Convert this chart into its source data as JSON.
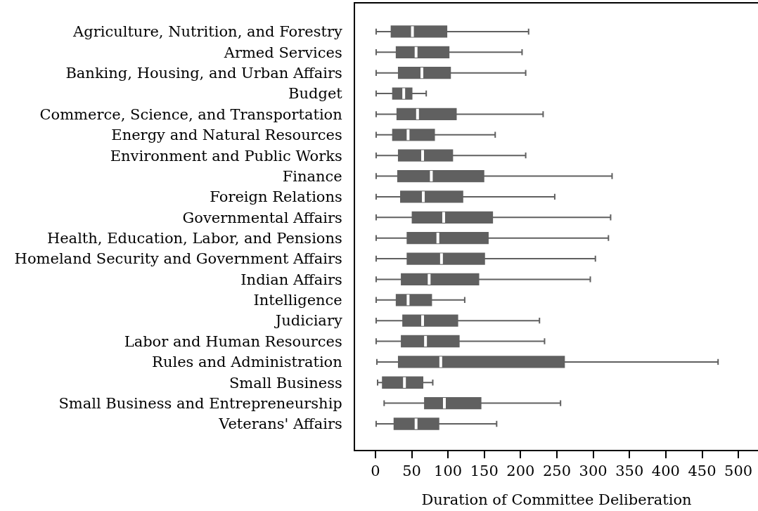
{
  "chart_data": {
    "type": "box",
    "orientation": "horizontal",
    "xlabel": "Duration of Committee Deliberation",
    "categories": [
      "Agriculture, Nutrition, and Forestry",
      "Armed Services",
      "Banking, Housing, and Urban Affairs",
      "Budget",
      "Commerce, Science, and Transportation",
      "Energy and Natural Resources",
      "Environment and Public Works",
      "Finance",
      "Foreign Relations",
      "Governmental Affairs",
      "Health, Education, Labor, and Pensions",
      "Homeland Security and Government Affairs",
      "Indian Affairs",
      "Intelligence",
      "Judiciary",
      "Labor and Human Resources",
      "Rules and Administration",
      "Small Business",
      "Small Business and Entrepreneurship",
      "Veterans' Affairs"
    ],
    "boxes": [
      {
        "low": 1,
        "q1": 22,
        "median": 51,
        "q3": 98,
        "high": 211
      },
      {
        "low": 1,
        "q1": 29,
        "median": 56,
        "q3": 101,
        "high": 202
      },
      {
        "low": 1,
        "q1": 32,
        "median": 64,
        "q3": 103,
        "high": 207
      },
      {
        "low": 1,
        "q1": 24,
        "median": 39,
        "q3": 50,
        "high": 70
      },
      {
        "low": 1,
        "q1": 30,
        "median": 58,
        "q3": 111,
        "high": 231
      },
      {
        "low": 1,
        "q1": 24,
        "median": 45,
        "q3": 81,
        "high": 165
      },
      {
        "low": 1,
        "q1": 32,
        "median": 65,
        "q3": 106,
        "high": 207
      },
      {
        "low": 1,
        "q1": 31,
        "median": 77,
        "q3": 149,
        "high": 326
      },
      {
        "low": 1,
        "q1": 35,
        "median": 66,
        "q3": 120,
        "high": 247
      },
      {
        "low": 1,
        "q1": 51,
        "median": 94,
        "q3": 161,
        "high": 324
      },
      {
        "low": 1,
        "q1": 44,
        "median": 86,
        "q3": 155,
        "high": 321
      },
      {
        "low": 1,
        "q1": 44,
        "median": 91,
        "q3": 150,
        "high": 303
      },
      {
        "low": 1,
        "q1": 36,
        "median": 74,
        "q3": 142,
        "high": 296
      },
      {
        "low": 1,
        "q1": 29,
        "median": 45,
        "q3": 77,
        "high": 123
      },
      {
        "low": 1,
        "q1": 38,
        "median": 65,
        "q3": 113,
        "high": 226
      },
      {
        "low": 1,
        "q1": 36,
        "median": 69,
        "q3": 115,
        "high": 233
      },
      {
        "low": 2,
        "q1": 32,
        "median": 90,
        "q3": 260,
        "high": 472
      },
      {
        "low": 3,
        "q1": 10,
        "median": 40,
        "q3": 65,
        "high": 79
      },
      {
        "low": 12,
        "q1": 68,
        "median": 95,
        "q3": 145,
        "high": 255
      },
      {
        "low": 1,
        "q1": 26,
        "median": 56,
        "q3": 87,
        "high": 167
      }
    ],
    "color": "#606060",
    "xlim": [
      -28,
      527
    ],
    "xticks": [
      0,
      50,
      100,
      150,
      200,
      250,
      300,
      350,
      400,
      450,
      500
    ]
  }
}
